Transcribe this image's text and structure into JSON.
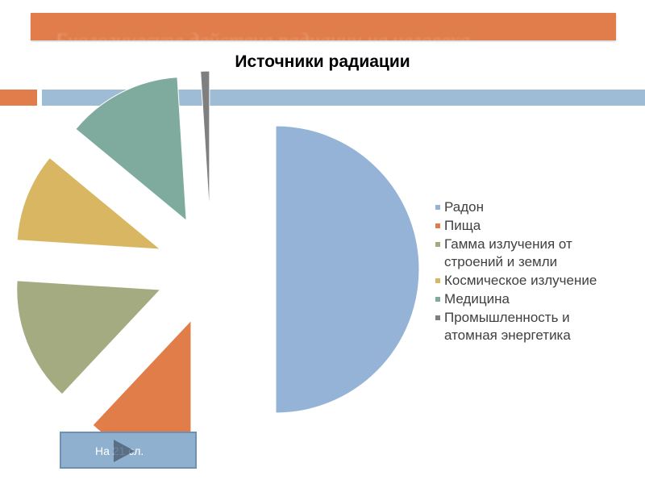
{
  "header": {
    "banner_text": "Биологическое действие радиации на человека"
  },
  "nav": {
    "label": "На 21 сл.",
    "icon": "play-icon"
  },
  "chart_data": {
    "type": "pie",
    "title": "Источники радиации",
    "exploded": true,
    "legend_position": "right",
    "categories": [
      "Радон",
      "Пища",
      "Гамма излучения от строений и земли",
      "Космическое излучение",
      "Медицина",
      "Промышленность и атомная энергетика"
    ],
    "legend_lines": [
      [
        "Радон"
      ],
      [
        "Пища"
      ],
      [
        "Гамма излучения от",
        "строений и земли"
      ],
      [
        "Космическое излучение"
      ],
      [
        "Медицина"
      ],
      [
        "Промышленность и",
        "атомная энергетика"
      ]
    ],
    "values": [
      50,
      12,
      14,
      10,
      13,
      1
    ],
    "colors": [
      "#95b3d7",
      "#e07d48",
      "#a4ab80",
      "#d9b662",
      "#7fab9e",
      "#7f7f7f"
    ]
  }
}
